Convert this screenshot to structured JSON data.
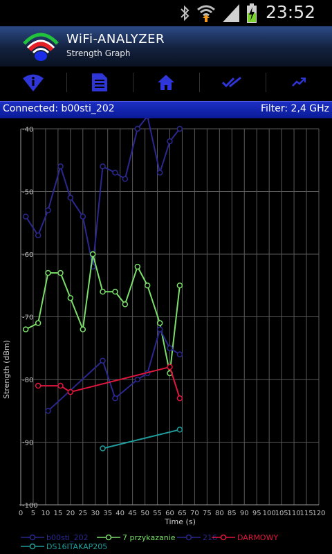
{
  "status_bar": {
    "time": "23:52",
    "icons": [
      "bluetooth-icon",
      "wifi-upload-icon",
      "signal-icon",
      "battery-charging-icon"
    ]
  },
  "app": {
    "title": "WiFi-ANALYZER",
    "subtitle": "Strength Graph",
    "logo_icon": "wifi-logo-icon"
  },
  "toolbar": {
    "items": [
      {
        "icon": "wifi-info-icon"
      },
      {
        "icon": "document-icon"
      },
      {
        "icon": "home-icon"
      },
      {
        "icon": "double-check-icon"
      },
      {
        "icon": "trend-graph-icon"
      }
    ],
    "icon_color": "#2f36d8"
  },
  "connection": {
    "connected_text": "Connected: b00sti_202",
    "filter_text": "Filter: 2,4 GHz"
  },
  "chart_data": {
    "type": "line",
    "xlabel": "Time (s)",
    "ylabel": "Strength (dBm)",
    "xlim": [
      0,
      120
    ],
    "ylim": [
      -100,
      -40
    ],
    "x_ticks": [
      "0",
      "5",
      "10",
      "15",
      "20",
      "25",
      "30",
      "35",
      "40",
      "45",
      "50",
      "55",
      "60",
      "65",
      "70",
      "75",
      "80",
      "85",
      "90",
      "95",
      "100",
      "105",
      "110",
      "115",
      "120"
    ],
    "y_ticks": [
      "-40",
      "-50",
      "-60",
      "-70",
      "-80",
      "-90",
      "-100"
    ],
    "grid": true,
    "legend_position": "bottom",
    "series": [
      {
        "name": "b00sti_202",
        "color": "#2b2890",
        "points": [
          [
            2,
            -54
          ],
          [
            7,
            -57
          ],
          [
            11,
            -53
          ],
          [
            16,
            -46
          ],
          [
            20,
            -51
          ],
          [
            25,
            -54
          ],
          [
            29,
            -62
          ],
          [
            33,
            -46
          ],
          [
            38,
            -47
          ],
          [
            42,
            -48
          ],
          [
            47,
            -40
          ],
          [
            51,
            -38
          ],
          [
            56,
            -47
          ],
          [
            60,
            -42
          ],
          [
            64,
            -40
          ]
        ]
      },
      {
        "name": "7 przykazanie",
        "color": "#7be06a",
        "points": [
          [
            2,
            -72
          ],
          [
            7,
            -71
          ],
          [
            11,
            -63
          ],
          [
            16,
            -63
          ],
          [
            20,
            -67
          ],
          [
            25,
            -72
          ],
          [
            29,
            -60
          ],
          [
            33,
            -66
          ],
          [
            38,
            -66
          ],
          [
            42,
            -68
          ],
          [
            47,
            -62
          ],
          [
            51,
            -65
          ],
          [
            56,
            -71
          ],
          [
            60,
            -79
          ],
          [
            64,
            -65
          ]
        ]
      },
      {
        "name": "216",
        "color": "#2b2890",
        "points": [
          [
            11,
            -85
          ],
          [
            33,
            -77
          ],
          [
            38,
            -83
          ],
          [
            47,
            -80
          ],
          [
            51,
            -79
          ],
          [
            56,
            -72
          ],
          [
            60,
            -75
          ],
          [
            64,
            -76
          ]
        ]
      },
      {
        "name": "DARMOWY",
        "color": "#e0163e",
        "points": [
          [
            7,
            -81
          ],
          [
            16,
            -81
          ],
          [
            20,
            -82
          ],
          [
            60,
            -78
          ],
          [
            64,
            -83
          ]
        ]
      },
      {
        "name": "DS16ITAKAP205",
        "color": "#1f9e9c",
        "points": [
          [
            33,
            -91
          ],
          [
            64,
            -88
          ]
        ]
      }
    ]
  }
}
